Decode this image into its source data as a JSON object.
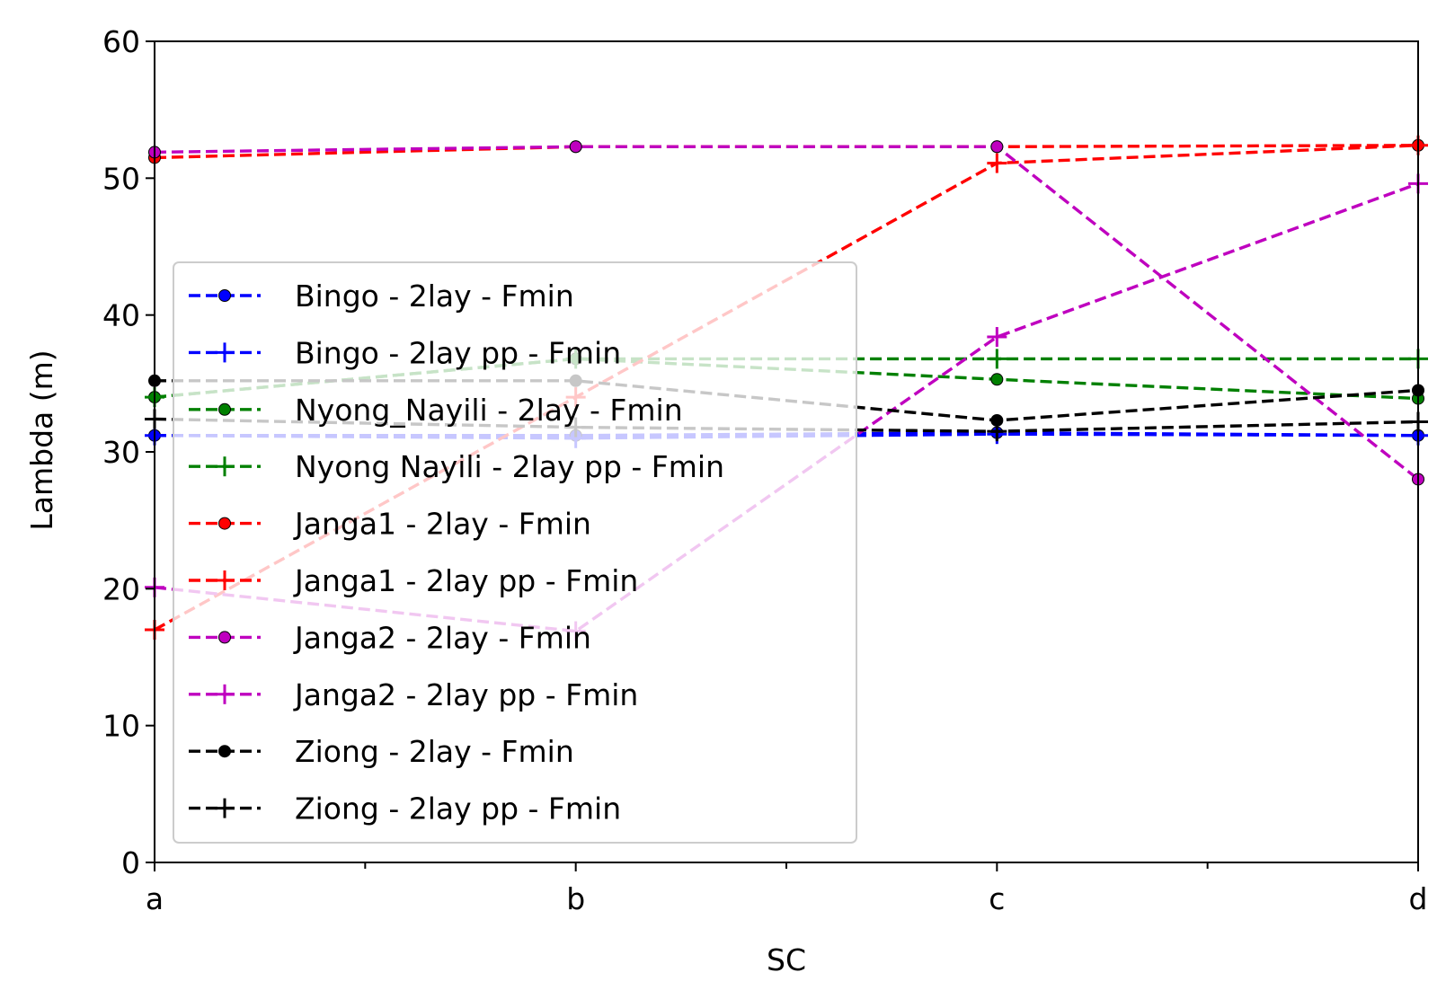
{
  "chart_data": {
    "type": "line",
    "xlabel": "SC",
    "ylabel": "Lambda (m)",
    "categories": [
      "a",
      "b",
      "c",
      "d"
    ],
    "ylim": [
      0,
      60
    ],
    "yticks": [
      0,
      10,
      20,
      30,
      40,
      50,
      60
    ],
    "grid": false,
    "legend_position": "center-left",
    "series": [
      {
        "name": "Bingo - 2lay - Fmin",
        "color": "#0000ff",
        "marker": "dot",
        "values": [
          31.2,
          31.2,
          31.4,
          31.2
        ]
      },
      {
        "name": "Bingo - 2lay pp - Fmin",
        "color": "#0000ff",
        "marker": "plus",
        "values": [
          31.2,
          31.0,
          31.3,
          31.2
        ]
      },
      {
        "name": "Nyong_Nayili - 2lay - Fmin",
        "color": "#008000",
        "marker": "dot",
        "values": [
          34.0,
          36.8,
          35.3,
          33.9
        ]
      },
      {
        "name": "Nyong Nayili - 2lay pp - Fmin",
        "color": "#008000",
        "marker": "plus",
        "values": [
          34.0,
          36.8,
          36.8,
          36.8
        ]
      },
      {
        "name": "Janga1 - 2lay - Fmin",
        "color": "#ff0000",
        "marker": "dot",
        "values": [
          51.5,
          52.3,
          52.3,
          52.4
        ]
      },
      {
        "name": "Janga1 - 2lay pp - Fmin",
        "color": "#ff0000",
        "marker": "plus",
        "values": [
          17.0,
          34.0,
          51.1,
          52.4
        ]
      },
      {
        "name": "Janga2 - 2lay - Fmin",
        "color": "#bf00bf",
        "marker": "dot",
        "values": [
          51.9,
          52.3,
          52.3,
          28.0
        ]
      },
      {
        "name": "Janga2 - 2lay pp - Fmin",
        "color": "#bf00bf",
        "marker": "plus",
        "values": [
          20.1,
          16.9,
          38.4,
          49.6
        ]
      },
      {
        "name": "Ziong - 2lay - Fmin",
        "color": "#000000",
        "marker": "dot",
        "values": [
          35.2,
          35.2,
          32.3,
          34.5
        ]
      },
      {
        "name": "Ziong - 2lay pp - Fmin",
        "color": "#000000",
        "marker": "plus",
        "values": [
          32.4,
          31.8,
          31.5,
          32.2
        ]
      }
    ]
  }
}
